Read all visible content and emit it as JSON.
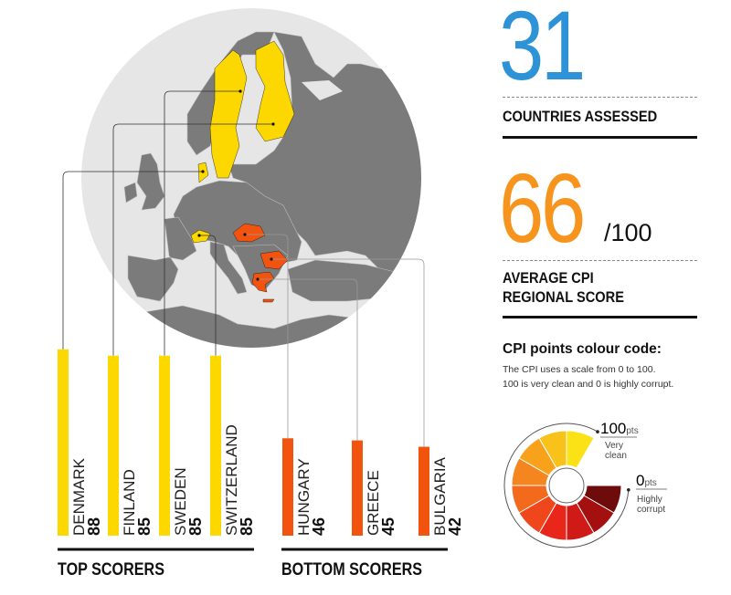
{
  "stats": {
    "countries_value": "31",
    "countries_label": "COUNTRIES  ASSESSED",
    "average_value": "66",
    "average_suffix": "/100",
    "average_label_line1": "AVERAGE CPI",
    "average_label_line2": "REGIONAL SCORE",
    "accent_blue": "#2d93d6",
    "accent_orange": "#f7941d"
  },
  "legend": {
    "title": "CPI points colour code:",
    "desc_line1": "The CPI uses a scale from 0 to 100.",
    "desc_line2": "100 is very clean and 0 is highly corrupt.",
    "high_value": "100",
    "high_unit": "pts",
    "high_label_line1": "Very",
    "high_label_line2": "clean",
    "low_value": "0",
    "low_unit": "pts",
    "low_label_line1": "Highly",
    "low_label_line2": "corrupt",
    "scale_colors": [
      "#6e0b0b",
      "#a3100f",
      "#cf1a17",
      "#e8261a",
      "#ef471b",
      "#f36a1c",
      "#f5861f",
      "#f8a21c",
      "#f9c21a",
      "#fbe217"
    ]
  },
  "sections": {
    "top_label": "TOP SCORERS",
    "bottom_label": "BOTTOM SCORERS"
  },
  "chart_data": {
    "type": "bar",
    "orientation": "vertical",
    "categories": [
      "DENMARK",
      "FINLAND",
      "SWEDEN",
      "SWITZERLAND",
      "HUNGARY",
      "GREECE",
      "BULGARIA"
    ],
    "values": [
      88,
      85,
      85,
      85,
      46,
      45,
      42
    ],
    "groups": [
      {
        "name": "TOP SCORERS",
        "categories": [
          "DENMARK",
          "FINLAND",
          "SWEDEN",
          "SWITZERLAND"
        ],
        "color": "#fcd700"
      },
      {
        "name": "BOTTOM SCORERS",
        "categories": [
          "HUNGARY",
          "GREECE",
          "BULGARIA"
        ],
        "color": "#f25410"
      }
    ],
    "ylim": [
      0,
      100
    ],
    "grid": false,
    "data_labels": [
      "88",
      "85",
      "85",
      "85",
      "46",
      "45",
      "42"
    ]
  }
}
